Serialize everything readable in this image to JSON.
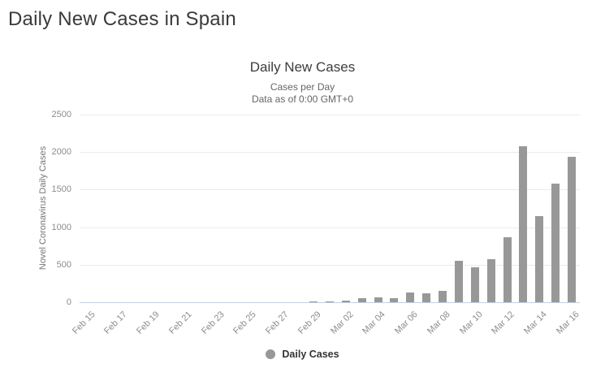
{
  "page": {
    "title": "Daily New Cases in Spain"
  },
  "chart": {
    "colors": {
      "bar": "#989898",
      "grid": "#ebebeb",
      "zero_line": "#c6d0e4",
      "tick_text": "#8c8c8c",
      "legend_dot": "#989898"
    }
  },
  "chart_data": {
    "type": "bar",
    "title": "Daily New Cases",
    "subtitle": [
      "Cases per Day",
      "Data as of 0:00 GMT+0"
    ],
    "xlabel": "",
    "ylabel": "Novel Coronavirus Daily Cases",
    "ylim": [
      0,
      2500
    ],
    "ytick_interval": 500,
    "ytick_labels": [
      "0",
      "500",
      "1000",
      "1500",
      "2000",
      "2500"
    ],
    "grid": true,
    "legend": {
      "position": "bottom",
      "entries": [
        "Daily Cases"
      ]
    },
    "categories": [
      "Feb 15",
      "Feb 16",
      "Feb 17",
      "Feb 18",
      "Feb 19",
      "Feb 20",
      "Feb 21",
      "Feb 22",
      "Feb 23",
      "Feb 24",
      "Feb 25",
      "Feb 26",
      "Feb 27",
      "Feb 28",
      "Feb 29",
      "Mar 01",
      "Mar 02",
      "Mar 03",
      "Mar 04",
      "Mar 05",
      "Mar 06",
      "Mar 07",
      "Mar 08",
      "Mar 09",
      "Mar 10",
      "Mar 11",
      "Mar 12",
      "Mar 13",
      "Mar 14",
      "Mar 15",
      "Mar 16"
    ],
    "xtick_labels": [
      "Feb 15",
      "Feb 17",
      "Feb 19",
      "Feb 21",
      "Feb 23",
      "Feb 25",
      "Feb 27",
      "Feb 29",
      "Mar 02",
      "Mar 04",
      "Mar 06",
      "Mar 08",
      "Mar 10",
      "Mar 12",
      "Mar 14",
      "Mar 16"
    ],
    "values": [
      0,
      0,
      0,
      0,
      0,
      0,
      0,
      0,
      0,
      0,
      0,
      0,
      0,
      0,
      13,
      12,
      24,
      52,
      70,
      58,
      126,
      115,
      152,
      550,
      460,
      575,
      865,
      2080,
      1150,
      1580,
      1940
    ]
  }
}
